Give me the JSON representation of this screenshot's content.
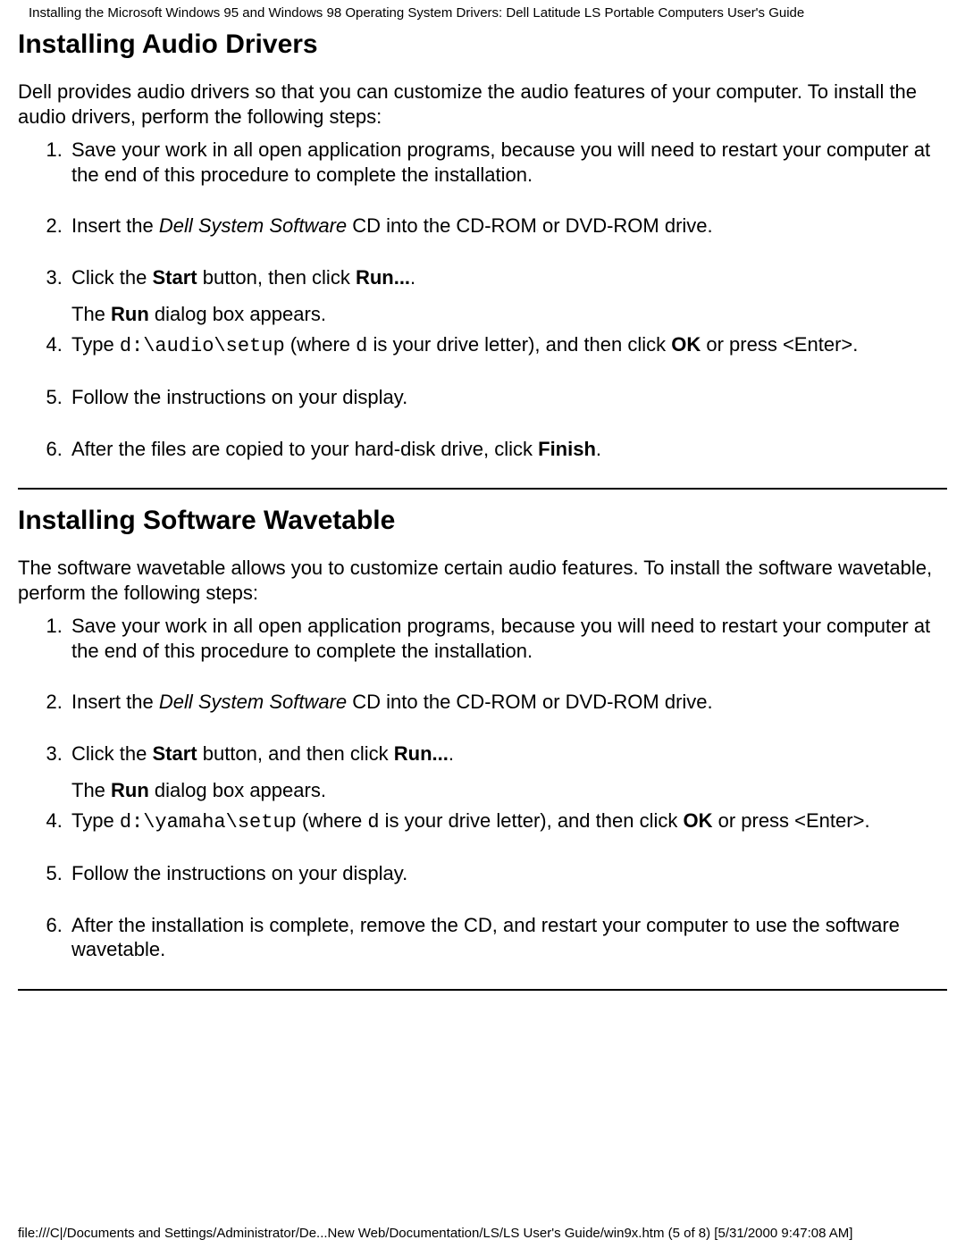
{
  "header": {
    "title": "Installing the Microsoft Windows 95 and Windows 98 Operating System Drivers: Dell Latitude LS Portable Computers User's Guide"
  },
  "section1": {
    "heading": "Installing Audio Drivers",
    "intro": "Dell provides audio drivers so that you can customize the audio features of your computer. To install the audio drivers, perform the following steps:",
    "step1": "Save your work in all open application programs, because you will need to restart your computer at the end of this procedure to complete the installation.",
    "step2_pre": "Insert the ",
    "step2_italic": "Dell System Software",
    "step2_post": " CD into the CD-ROM or DVD-ROM drive.",
    "step3_a": "Click the ",
    "step3_b": "Start",
    "step3_c": " button, then click ",
    "step3_d": "Run...",
    "step3_e": ".",
    "step3_sub_a": "The ",
    "step3_sub_b": "Run",
    "step3_sub_c": " dialog box appears.",
    "step4_a": "Type ",
    "step4_code": "d:\\audio\\setup",
    "step4_b": " (where ",
    "step4_code2": "d",
    "step4_c": " is your drive letter), and then click ",
    "step4_d": "OK",
    "step4_e": " or press <Enter>.",
    "step5": "Follow the instructions on your display.",
    "step6_a": "After the files are copied to your hard-disk drive, click ",
    "step6_b": "Finish",
    "step6_c": "."
  },
  "section2": {
    "heading": "Installing Software Wavetable",
    "intro": "The software wavetable allows you to customize certain audio features. To install the software wavetable, perform the following steps:",
    "step1": "Save your work in all open application programs, because you will need to restart your computer at the end of this procedure to complete the installation.",
    "step2_pre": "Insert the ",
    "step2_italic": "Dell System Software",
    "step2_post": " CD into the CD-ROM or DVD-ROM drive.",
    "step3_a": "Click the ",
    "step3_b": "Start",
    "step3_c": " button, and then click ",
    "step3_d": "Run...",
    "step3_e": ".",
    "step3_sub_a": "The ",
    "step3_sub_b": "Run",
    "step3_sub_c": " dialog box appears.",
    "step4_a": "Type ",
    "step4_code": "d:\\yamaha\\setup",
    "step4_b": " (where ",
    "step4_code2": "d",
    "step4_c": " is your drive letter), and then click ",
    "step4_d": "OK",
    "step4_e": " or press <Enter>.",
    "step5": "Follow the instructions on your display.",
    "step6": "After the installation is complete, remove the CD, and restart your computer to use the software wavetable."
  },
  "footer": {
    "text": "file:///C|/Documents and Settings/Administrator/De...New Web/Documentation/LS/LS User's Guide/win9x.htm (5 of 8) [5/31/2000 9:47:08 AM]"
  }
}
